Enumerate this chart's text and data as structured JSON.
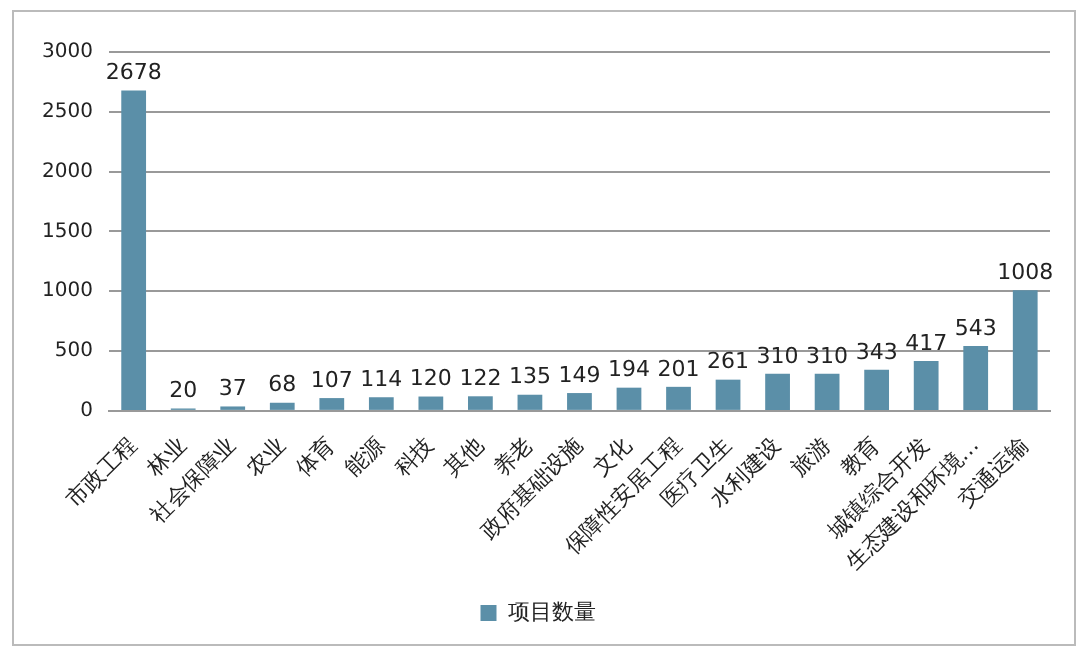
{
  "chart_data": {
    "type": "bar",
    "categories": [
      "市政工程",
      "林业",
      "社会保障业",
      "农业",
      "体育",
      "能源",
      "科技",
      "其他",
      "养老",
      "政府基础设施",
      "文化",
      "保障性安居工程",
      "医疗卫生",
      "水利建设",
      "旅游",
      "教育",
      "城镇综合开发",
      "生态建设和环境…",
      "交通运输"
    ],
    "series": [
      {
        "name": "项目数量",
        "color": "#5b8fa8",
        "values": [
          2678,
          20,
          37,
          68,
          107,
          114,
          120,
          122,
          135,
          149,
          194,
          201,
          261,
          310,
          310,
          343,
          417,
          543,
          1008
        ]
      }
    ],
    "ylim": [
      0,
      3000
    ],
    "yticks": [
      0,
      500,
      1000,
      1500,
      2000,
      2500,
      3000
    ],
    "grid": "y",
    "legend": "bottom",
    "data_labels": true
  }
}
